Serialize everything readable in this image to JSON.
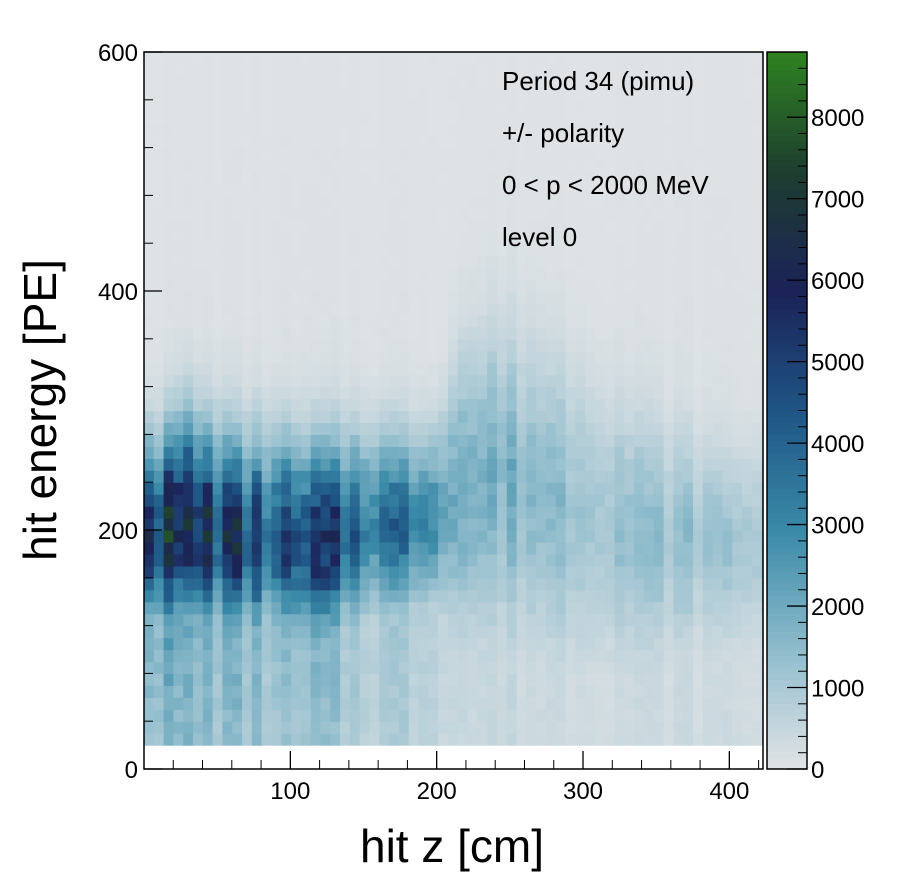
{
  "chart_data": {
    "type": "heatmap",
    "title": "",
    "xlabel": "hit z [cm]",
    "ylabel": "hit energy [PE]",
    "xlim": [
      0,
      423
    ],
    "ylim": [
      0,
      600
    ],
    "zlim": [
      0,
      8800
    ],
    "x_ticks": [
      "100",
      "200",
      "300",
      "400"
    ],
    "x_tick_values": [
      100,
      200,
      300,
      400
    ],
    "y_ticks": [
      "0",
      "200",
      "400",
      "600"
    ],
    "y_tick_values": [
      0,
      200,
      400,
      600
    ],
    "colorbar_ticks": [
      "0",
      "1000",
      "2000",
      "3000",
      "4000",
      "5000",
      "6000",
      "7000",
      "8000"
    ],
    "colorbar_tick_values": [
      0,
      1000,
      2000,
      3000,
      4000,
      5000,
      6000,
      7000,
      8000
    ],
    "colorscale": [
      "#e2e4e6",
      "#8fbccc",
      "#3a8aa8",
      "#1e5585",
      "#1b2258",
      "#1e3e30",
      "#2e8220"
    ],
    "annotations": [
      "Period 34 (pimu)",
      "+/- polarity",
      "0 < p < 2000 MeV",
      "level 0"
    ],
    "bin_width_x": 6.7,
    "bin_width_y": 10,
    "z_profile": {
      "z": [
        0,
        10,
        20,
        30,
        40,
        50,
        60,
        70,
        80,
        90,
        100,
        110,
        120,
        140,
        160,
        180,
        200,
        215,
        240,
        260,
        280,
        300,
        320,
        340,
        360,
        380,
        400,
        423
      ],
      "peak_energy": [
        200,
        195,
        205,
        210,
        200,
        200,
        195,
        195,
        195,
        195,
        195,
        190,
        190,
        200,
        205,
        205,
        210,
        230,
        245,
        235,
        225,
        215,
        205,
        200,
        195,
        195,
        190,
        190
      ],
      "peak_counts": [
        8200,
        5600,
        5800,
        5600,
        5800,
        5300,
        5100,
        4800,
        4300,
        4100,
        4200,
        3900,
        5200,
        3900,
        3600,
        3400,
        3200,
        1900,
        1600,
        1500,
        1400,
        1250,
        1300,
        1150,
        1100,
        1050,
        1000,
        950
      ],
      "width": [
        45,
        48,
        50,
        52,
        52,
        52,
        50,
        50,
        50,
        50,
        50,
        50,
        50,
        48,
        46,
        45,
        44,
        70,
        75,
        75,
        72,
        70,
        65,
        60,
        55,
        50,
        48,
        48
      ],
      "tail_level": [
        2600,
        2200,
        2100,
        2000,
        1900,
        1800,
        1700,
        1600,
        1500,
        1400,
        1300,
        1200,
        1700,
        1100,
        1000,
        900,
        800,
        400,
        350,
        300,
        280,
        250,
        220,
        200,
        180,
        170,
        160,
        150
      ]
    }
  }
}
